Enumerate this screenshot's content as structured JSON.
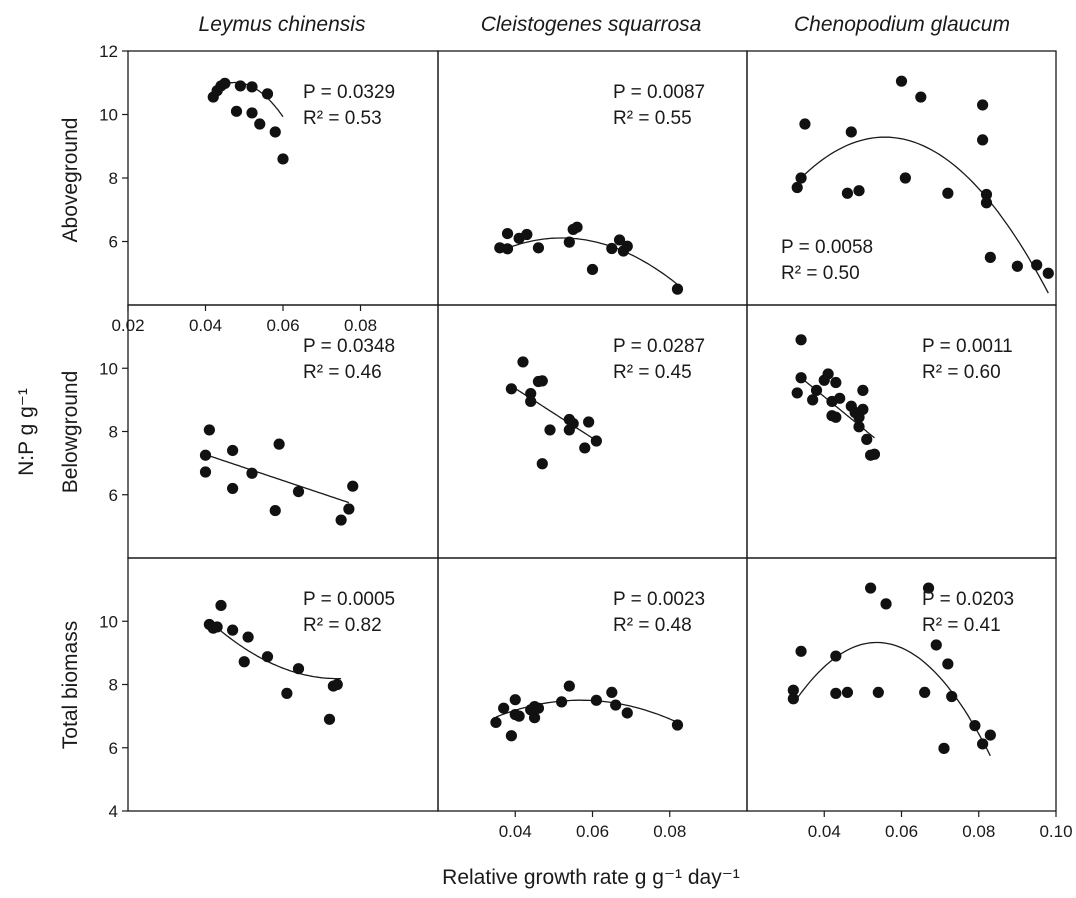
{
  "figure": {
    "column_titles": [
      "Leymus chinensis",
      "Cleistogenes squarrosa",
      "Chenopodium glaucum"
    ],
    "row_labels": [
      "Aboveground",
      "Belowground",
      "Total biomass"
    ],
    "xlabel": "Relative growth rate g g⁻¹ day⁻¹",
    "ylabel": "N:P g g⁻¹"
  },
  "chart_data": [
    {
      "type": "scatter",
      "panel": "Aboveground / Leymus chinensis",
      "xlim": [
        0.02,
        0.1
      ],
      "ylim": [
        4,
        12
      ],
      "xticks": [
        "0.02",
        "0.04",
        "0.06",
        "0.08"
      ],
      "yticks": [
        "12",
        "10",
        "8",
        "6"
      ],
      "stats": {
        "p": "P = 0.0329",
        "r2": "R² = 0.53"
      },
      "stats_pos": "top-right",
      "x": [
        0.042,
        0.043,
        0.044,
        0.045,
        0.048,
        0.049,
        0.052,
        0.052,
        0.054,
        0.056,
        0.058,
        0.06
      ],
      "y": [
        10.55,
        10.75,
        10.9,
        10.98,
        10.1,
        10.9,
        10.05,
        10.87,
        9.7,
        10.65,
        9.45,
        8.6
      ],
      "fit": {
        "kind": "poly2",
        "a": -7140,
        "b": 681.2,
        "c": -5.24,
        "x_range": [
          0.042,
          0.06
        ]
      }
    },
    {
      "type": "scatter",
      "panel": "Aboveground / Cleistogenes squarrosa",
      "xlim": [
        0.02,
        0.1
      ],
      "ylim": [
        4,
        12
      ],
      "xticks": [],
      "yticks": [],
      "stats": {
        "p": "P = 0.0087",
        "r2": "R² = 0.55"
      },
      "stats_pos": "top-right",
      "x": [
        0.036,
        0.038,
        0.038,
        0.041,
        0.043,
        0.046,
        0.054,
        0.055,
        0.056,
        0.06,
        0.065,
        0.067,
        0.068,
        0.069,
        0.082
      ],
      "y": [
        5.8,
        6.25,
        5.77,
        6.1,
        6.22,
        5.8,
        5.98,
        6.38,
        6.45,
        5.12,
        5.78,
        6.05,
        5.7,
        5.85,
        4.5
      ],
      "fit": {
        "kind": "poly2",
        "a": -1630,
        "b": 169.6,
        "c": 1.7,
        "x_range": [
          0.036,
          0.082
        ]
      }
    },
    {
      "type": "scatter",
      "panel": "Aboveground / Chenopodium glaucum",
      "xlim": [
        0.02,
        0.1
      ],
      "ylim": [
        4,
        12
      ],
      "xticks": [],
      "yticks": [],
      "stats": {
        "p": "P = 0.0058",
        "r2": "R² = 0.50"
      },
      "stats_pos": "bottom-left",
      "x": [
        0.033,
        0.034,
        0.035,
        0.046,
        0.047,
        0.049,
        0.06,
        0.061,
        0.065,
        0.072,
        0.081,
        0.081,
        0.082,
        0.082,
        0.083,
        0.09,
        0.095,
        0.098
      ],
      "y": [
        7.7,
        8.0,
        9.7,
        7.52,
        9.45,
        7.6,
        11.05,
        8.0,
        10.55,
        7.52,
        9.2,
        10.3,
        7.48,
        7.22,
        5.5,
        5.22,
        5.26,
        5.0
      ],
      "fit": {
        "kind": "poly2",
        "a": -2740,
        "b": 305,
        "c": 0.8,
        "x_range": [
          0.033,
          0.098
        ]
      }
    },
    {
      "type": "scatter",
      "panel": "Belowground / Leymus chinensis",
      "xlim": [
        0.02,
        0.1
      ],
      "ylim": [
        4,
        12
      ],
      "xticks": [],
      "yticks": [
        "10",
        "8",
        "6"
      ],
      "stats": {
        "p": "P = 0.0348",
        "r2": "R² = 0.46"
      },
      "stats_pos": "top-right",
      "x": [
        0.04,
        0.04,
        0.041,
        0.047,
        0.047,
        0.052,
        0.058,
        0.059,
        0.064,
        0.075,
        0.077,
        0.078
      ],
      "y": [
        7.25,
        6.72,
        8.05,
        7.4,
        6.2,
        6.68,
        5.5,
        7.6,
        6.1,
        5.2,
        5.55,
        6.27
      ],
      "fit": {
        "kind": "poly2",
        "a": 0,
        "b": -41,
        "c": 8.91,
        "x_range": [
          0.04,
          0.077
        ]
      }
    },
    {
      "type": "scatter",
      "panel": "Belowground / Cleistogenes squarrosa",
      "xlim": [
        0.02,
        0.1
      ],
      "ylim": [
        4,
        12
      ],
      "xticks": [],
      "yticks": [],
      "stats": {
        "p": "P = 0.0287",
        "r2": "R² = 0.45"
      },
      "stats_pos": "top-right",
      "x": [
        0.039,
        0.042,
        0.044,
        0.044,
        0.046,
        0.047,
        0.047,
        0.049,
        0.054,
        0.054,
        0.055,
        0.058,
        0.059,
        0.061
      ],
      "y": [
        9.35,
        10.2,
        9.2,
        8.95,
        9.58,
        9.6,
        6.98,
        8.05,
        8.38,
        8.05,
        8.25,
        7.48,
        8.3,
        7.7
      ],
      "fit": {
        "kind": "poly2",
        "a": 0,
        "b": -78.5,
        "c": 12.5,
        "x_range": [
          0.039,
          0.062
        ]
      }
    },
    {
      "type": "scatter",
      "panel": "Belowground / Chenopodium glaucum",
      "xlim": [
        0.02,
        0.1
      ],
      "ylim": [
        4,
        12
      ],
      "xticks": [],
      "yticks": [],
      "stats": {
        "p": "P = 0.0011",
        "r2": "R² = 0.60"
      },
      "stats_pos": "top-right",
      "x": [
        0.033,
        0.034,
        0.034,
        0.037,
        0.038,
        0.04,
        0.041,
        0.042,
        0.042,
        0.043,
        0.043,
        0.044,
        0.047,
        0.048,
        0.049,
        0.049,
        0.05,
        0.05,
        0.051,
        0.052,
        0.053
      ],
      "y": [
        9.22,
        10.9,
        9.7,
        9.0,
        9.3,
        9.62,
        9.82,
        8.95,
        8.5,
        9.55,
        8.45,
        9.05,
        8.8,
        8.6,
        8.45,
        8.15,
        9.3,
        8.7,
        7.75,
        7.25,
        7.28
      ],
      "fit": {
        "kind": "poly2",
        "a": 0,
        "b": -100,
        "c": 13.1,
        "x_range": [
          0.033,
          0.053
        ]
      }
    },
    {
      "type": "scatter",
      "panel": "Total biomass / Leymus chinensis",
      "xlim": [
        0.02,
        0.1
      ],
      "ylim": [
        4,
        12
      ],
      "xticks": [],
      "yticks": [
        "10",
        "8",
        "6",
        "4"
      ],
      "stats": {
        "p": "P = 0.0005",
        "r2": "R² = 0.82"
      },
      "stats_pos": "top-right",
      "x": [
        0.041,
        0.042,
        0.043,
        0.044,
        0.047,
        0.05,
        0.051,
        0.056,
        0.061,
        0.064,
        0.072,
        0.073,
        0.074
      ],
      "y": [
        9.9,
        9.78,
        9.82,
        10.5,
        9.72,
        8.72,
        9.5,
        8.88,
        7.72,
        8.5,
        6.9,
        7.95,
        8.0
      ],
      "fit": {
        "kind": "poly2",
        "a": 1660,
        "b": -246,
        "c": 17.3,
        "x_range": [
          0.042,
          0.075
        ]
      }
    },
    {
      "type": "scatter",
      "panel": "Total biomass / Cleistogenes squarrosa",
      "xlim": [
        0.02,
        0.1
      ],
      "ylim": [
        4,
        12
      ],
      "xticks": [
        "0.04",
        "0.06",
        "0.08"
      ],
      "yticks": [],
      "stats": {
        "p": "P = 0.0023",
        "r2": "R² = 0.48"
      },
      "stats_pos": "top-right",
      "x": [
        0.035,
        0.037,
        0.039,
        0.04,
        0.04,
        0.041,
        0.044,
        0.045,
        0.045,
        0.046,
        0.052,
        0.054,
        0.061,
        0.065,
        0.066,
        0.069,
        0.082
      ],
      "y": [
        6.8,
        7.25,
        6.38,
        7.52,
        7.05,
        7.0,
        7.2,
        7.3,
        6.95,
        7.25,
        7.45,
        7.95,
        7.5,
        7.75,
        7.35,
        7.1,
        6.72
      ],
      "fit": {
        "kind": "poly2",
        "a": -1110,
        "b": 126.3,
        "c": 3.91,
        "x_range": [
          0.035,
          0.082
        ]
      }
    },
    {
      "type": "scatter",
      "panel": "Total biomass / Chenopodium glaucum",
      "xlim": [
        0.02,
        0.1
      ],
      "ylim": [
        4,
        12
      ],
      "xticks": [
        "0.04",
        "0.06",
        "0.08",
        "0.10"
      ],
      "yticks": [],
      "stats": {
        "p": "P = 0.0203",
        "r2": "R² = 0.41"
      },
      "stats_pos": "top-right",
      "x": [
        0.032,
        0.032,
        0.034,
        0.043,
        0.043,
        0.046,
        0.052,
        0.054,
        0.056,
        0.066,
        0.067,
        0.069,
        0.071,
        0.072,
        0.073,
        0.079,
        0.081,
        0.083
      ],
      "y": [
        7.82,
        7.55,
        9.05,
        8.9,
        7.72,
        7.75,
        11.05,
        7.75,
        10.55,
        7.75,
        11.05,
        9.25,
        5.98,
        8.65,
        7.62,
        6.7,
        6.12,
        6.4
      ],
      "fit": {
        "kind": "poly2",
        "a": -4150,
        "b": 445,
        "c": -2.6,
        "x_range": [
          0.032,
          0.083
        ]
      }
    }
  ]
}
